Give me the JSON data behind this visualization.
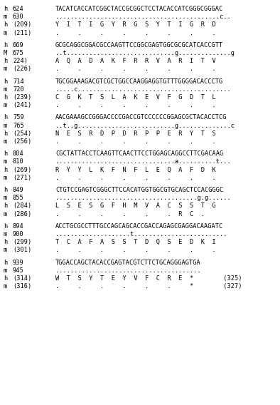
{
  "background_color": "#ffffff",
  "blocks": [
    {
      "h_num": "624",
      "m_num": "630",
      "h_seq": "TACATCACCATCGGCTACCGCGGCTCCTACACCATCGGGCGGGAC",
      "m_seq": "............................................c..",
      "h_aa_num": "(209)",
      "m_aa_num": "(211)",
      "h_aa": "Y  I  T  I  G  Y  R  G  S  Y  T  I  G  R  D",
      "m_aa": ".     .     .     .     .     .     .     .  ",
      "m_label": "m"
    },
    {
      "h_num": "669",
      "m_num": "675",
      "h_seq": "GCGCAGGCGGACGCCAAGTTCCGGCGAGTGGCGCGCATCACCGTT",
      "m_seq": "..t.............................g..............g",
      "h_aa_num": "224)",
      "m_aa_num": "(226)",
      "h_aa": "A  Q  A  D  A  K  F  R  R  V  A  R  I  T  V",
      "m_aa": ".     .     .     .     .     .     .     .  ",
      "m_label": "M"
    },
    {
      "h_num": "714",
      "m_num": "720",
      "h_seq": "TGCGGAAAGACGTCGCTGGCCAAGGAGGTGTTTGGGGACACCCTG",
      "m_seq": ".....c.........................................",
      "h_aa_num": "(239)",
      "m_aa_num": "(241)",
      "h_aa": "C  G  K  T  S  L  A  K  E  V  F  G  D  T  L",
      "m_aa": ".     .     .     .     .     .     .     .  ",
      "m_label": "m"
    },
    {
      "h_num": "759",
      "m_num": "765",
      "h_seq": "AACGAAAGCCGGGACCCCGACCGTCCCCCCGGAGCGCTACACCTCG",
      "m_seq": "..t..g..........................g..............c",
      "h_aa_num": "(254)",
      "m_aa_num": "(256)",
      "h_aa": "N  E  S  R  D  P  D  R  P  P  E  R  Y  T  S",
      "m_aa": ".     .     .     .     .     .     .     .  ",
      "m_label": "m"
    },
    {
      "h_num": "804",
      "m_num": "810",
      "h_seq": "CGCTATTACCTCAAGTTCAACTTCCTGGAGCAGGCCTTCGACAAG",
      "m_seq": "................................a..........t...",
      "h_aa_num": "(269)",
      "m_aa_num": "(271)",
      "h_aa": "R  Y  Y  L  K  F  N  F  L  E  Q  A  F  D  K",
      "m_aa": ".     .     .     .     .     .     .     .  ",
      "m_label": "m"
    },
    {
      "h_num": "849",
      "m_num": "855",
      "h_seq": "CTGTCCGAGTCGGGCTTCCACATGGTGGCGTGCAGCTCCACGGGC",
      "m_seq": "......................................g.g......",
      "h_aa_num": "(284)",
      "m_aa_num": "(286)",
      "h_aa": "L  S  E  S  G  F  H  M  V  A  C  S  S  T  G",
      "m_aa": ".     .     .     .     .     .  R  C  .     ",
      "m_label": "m"
    },
    {
      "h_num": "894",
      "m_num": "900",
      "h_seq": "ACCTGCGCCTTTGCCAGCAGCACCGACCAGAGCGAGGACAAGATC",
      "m_seq": "....................t.........................",
      "h_aa_num": "(299)",
      "m_aa_num": "(301)",
      "h_aa": "T  C  A  F  A  S  S  T  D  Q  S  E  D  K  I",
      "m_aa": ".     .     .     .     .     .     .     .  ",
      "m_label": "m"
    },
    {
      "h_num": "939",
      "m_num": "945",
      "h_seq": "TGGACCAGCTACACCGAGTACGTCTTCTGCAGGGAGTGA",
      "m_seq": ".......................................",
      "h_aa_num": "(314)",
      "m_aa_num": "(316)",
      "h_aa": "W  T  S  Y  T  E  Y  V  F  C  R  E  *        (325)",
      "m_aa": ".     .     .     .     .     .     *        (327)",
      "m_label": "m"
    }
  ]
}
